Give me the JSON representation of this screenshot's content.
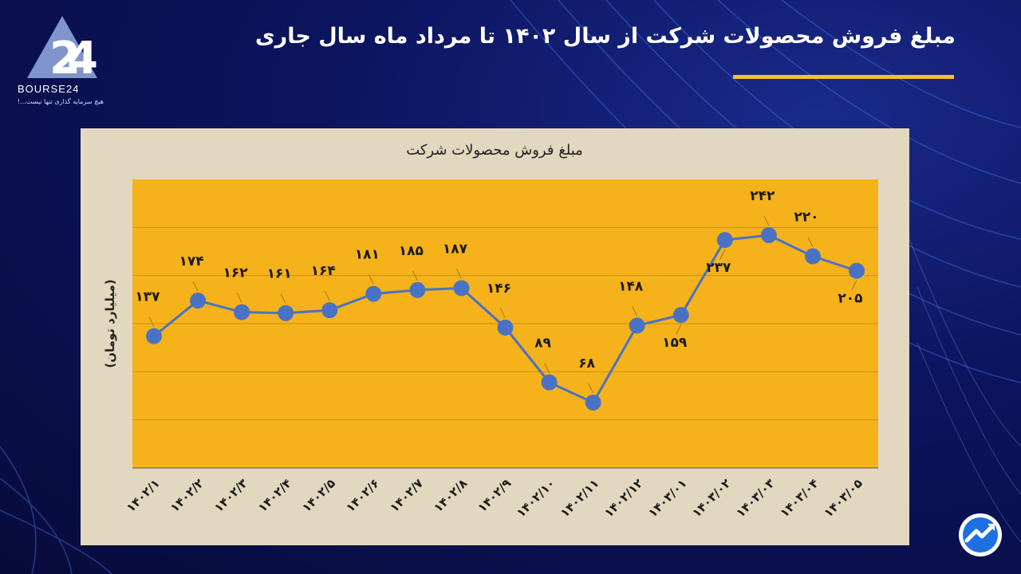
{
  "header": {
    "title": "مبلغ فروش محصولات شرکت از سال ۱۴۰۲ تا مرداد ماه سال جاری",
    "accent_color": "#f2c12e"
  },
  "logo": {
    "wordmark": "BOURSE24",
    "tagline": "هیچ سرمایه گذاری تنها نیست...!",
    "icon": "bourse24-logo-icon"
  },
  "corner_icon": "trend-arrow-icon",
  "chart_data": {
    "type": "line",
    "title": "مبلغ فروش محصولات شرکت",
    "ylabel": "(میلیارد تومان)",
    "xlabel": "",
    "ylim": [
      0,
      300
    ],
    "y_gridlines": [
      50,
      100,
      150,
      200,
      250
    ],
    "plot_background": "#f6b21b",
    "line_color": "#4a72c4",
    "categories": [
      "۱۴۰۲/۱",
      "۱۴۰۲/۲",
      "۱۴۰۲/۳",
      "۱۴۰۲/۴",
      "۱۴۰۲/۵",
      "۱۴۰۲/۶",
      "۱۴۰۲/۷",
      "۱۴۰۲/۸",
      "۱۴۰۲/۹",
      "۱۴۰۲/۱۰",
      "۱۴۰۲/۱۱",
      "۱۴۰۲/۱۲",
      "۱۴۰۳/۰۱",
      "۱۴۰۳/۰۲",
      "۱۴۰۳/۰۳",
      "۱۴۰۳/۰۴",
      "۱۴۰۳/۰۵"
    ],
    "values": [
      137,
      174,
      162,
      161,
      164,
      181,
      185,
      187,
      146,
      89,
      68,
      148,
      159,
      237,
      242,
      220,
      205
    ],
    "labels": [
      "۱۳۷",
      "۱۷۴",
      "۱۶۲",
      "۱۶۱",
      "۱۶۴",
      "۱۸۱",
      "۱۸۵",
      "۱۸۷",
      "۱۴۶",
      "۸۹",
      "۶۸",
      "۱۴۸",
      "۱۵۹",
      "۲۳۷",
      "۲۴۲",
      "۲۲۰",
      "۲۰۵"
    ],
    "label_position": [
      "above",
      "above",
      "above",
      "above",
      "above",
      "above",
      "above",
      "above",
      "above",
      "above",
      "above",
      "above",
      "below",
      "below",
      "above",
      "above",
      "below"
    ]
  }
}
